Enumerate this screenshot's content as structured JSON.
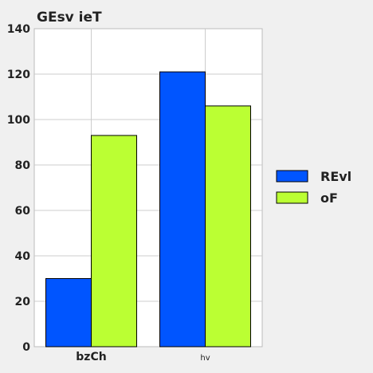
{
  "chart_data": {
    "type": "bar",
    "title": "GEsv ieT",
    "xlabel": "",
    "ylabel": "",
    "categories": [
      "bzCh",
      "hv"
    ],
    "series": [
      {
        "name": "REvl",
        "values": [
          30,
          121
        ],
        "color": "#0055ff"
      },
      {
        "name": "oF",
        "values": [
          93,
          106
        ],
        "color": "#bbff33"
      }
    ],
    "ylim": [
      0,
      140
    ],
    "yticks": [
      0,
      20,
      40,
      60,
      80,
      100,
      120,
      140
    ],
    "grid": true,
    "legend_position": "right"
  }
}
